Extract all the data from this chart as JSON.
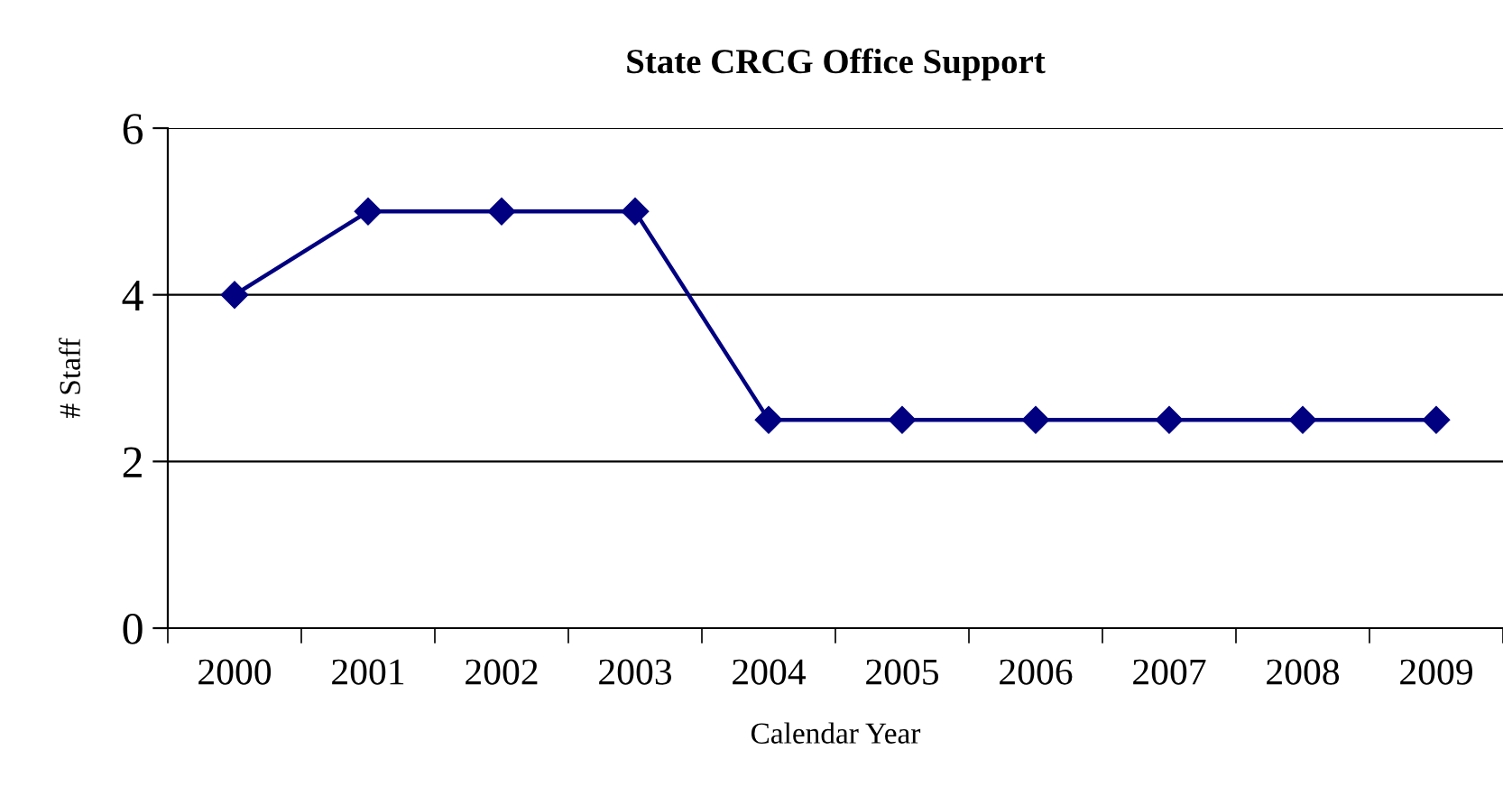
{
  "chart_data": {
    "type": "line",
    "title": "State CRCG Office Support",
    "xlabel": "Calendar Year",
    "ylabel": "# Staff",
    "categories": [
      "2000",
      "2001",
      "2002",
      "2003",
      "2004",
      "2005",
      "2006",
      "2007",
      "2008",
      "2009"
    ],
    "series": [
      {
        "color": "#000080",
        "values": [
          4,
          5,
          5,
          5,
          2.5,
          2.5,
          2.5,
          2.5,
          2.5,
          2.5
        ]
      }
    ],
    "ylim": [
      0,
      6
    ],
    "yticks": [
      0,
      2,
      4,
      6
    ],
    "grid": "y",
    "marker": "diamond",
    "line_style": "solid",
    "legend": false
  }
}
